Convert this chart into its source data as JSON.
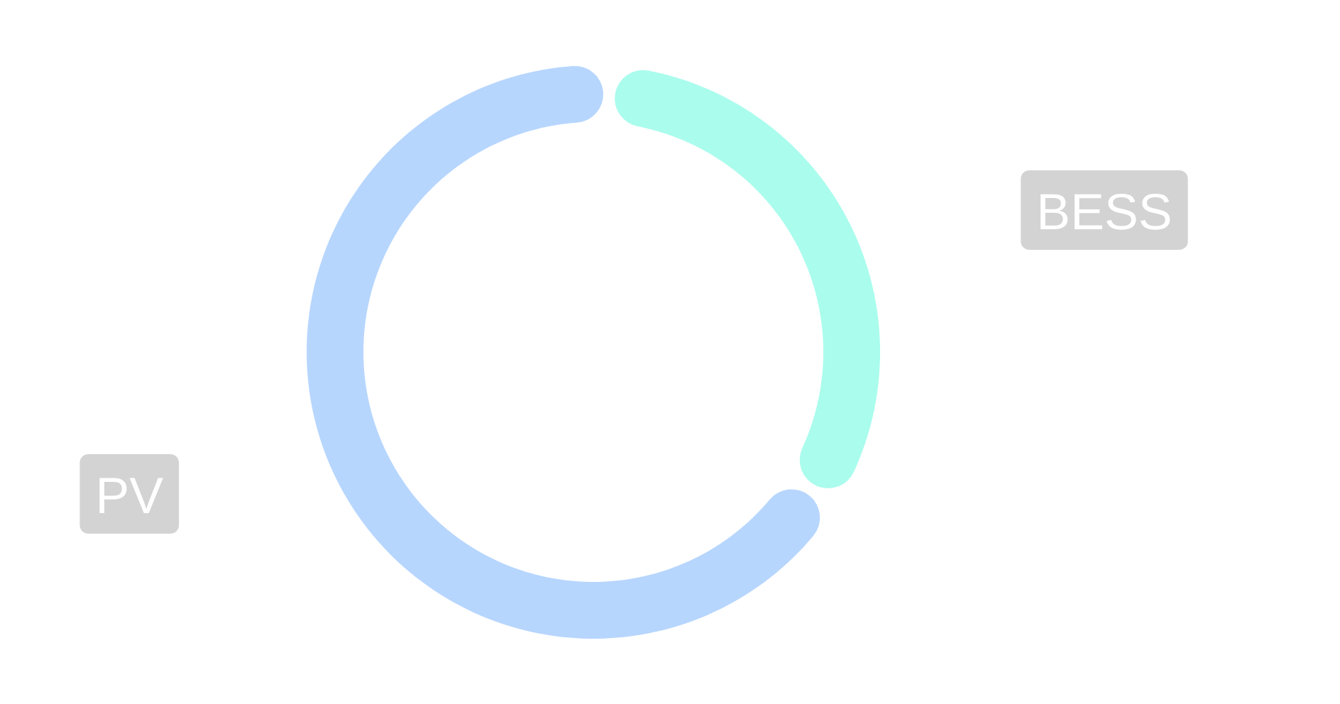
{
  "chart_data": {
    "type": "donut",
    "categories": [
      "BESS",
      "PV"
    ],
    "values": [
      33,
      67
    ],
    "colors": [
      "#aafced",
      "#b7d6fe"
    ]
  }
}
